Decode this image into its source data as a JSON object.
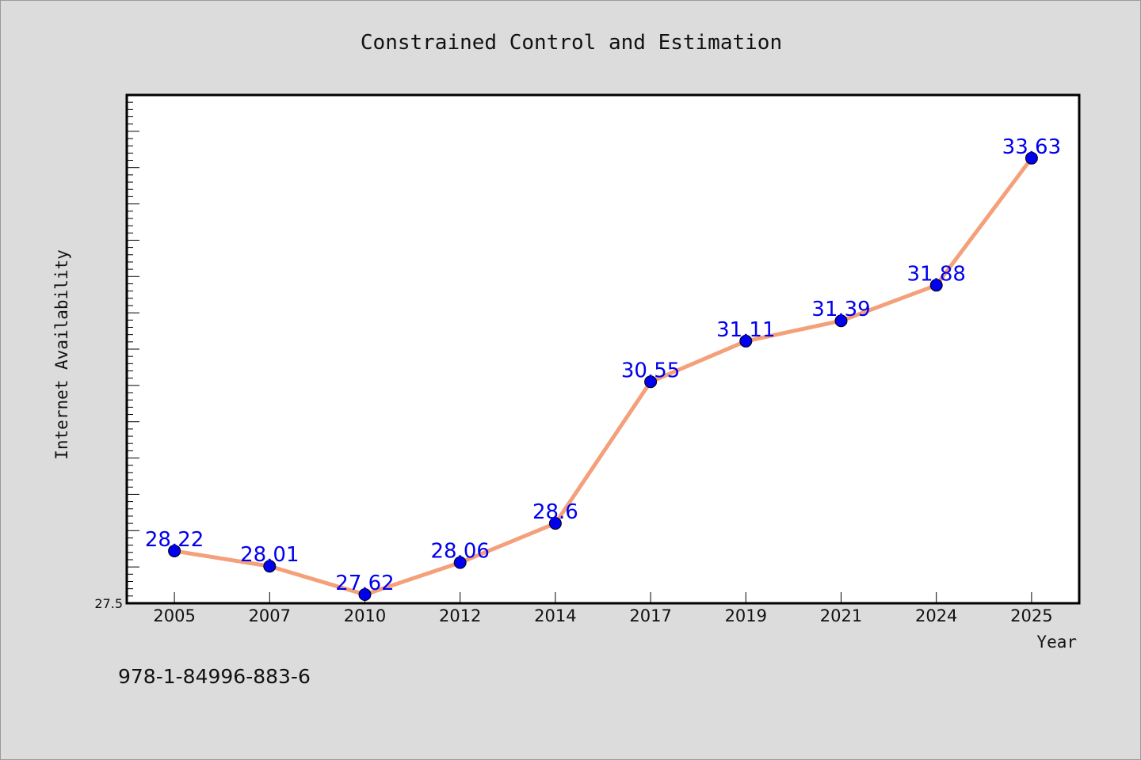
{
  "chart_data": {
    "type": "line",
    "title": "Constrained Control and Estimation",
    "xlabel": "Year",
    "ylabel": "Internet Availability",
    "categories": [
      "2005",
      "2007",
      "2010",
      "2012",
      "2014",
      "2017",
      "2019",
      "2021",
      "2024",
      "2025"
    ],
    "series": [
      {
        "values": [
          28.22,
          28.01,
          27.62,
          28.06,
          28.6,
          30.55,
          31.11,
          31.39,
          31.88,
          33.63
        ],
        "labels": [
          "28.22",
          "28.01",
          "27.62",
          "28.06",
          "28.6",
          "30.55",
          "31.11",
          "31.39",
          "31.88",
          "33.63"
        ],
        "line_color": "#f4a07a",
        "marker_color": "#0000ee",
        "label_color": "#0000ee"
      }
    ],
    "ylim": [
      27.5,
      34.5
    ],
    "y_tick_labels": [
      "27.5"
    ],
    "grid": false,
    "legend": "none"
  },
  "footer_text": "978-1-84996-883-6"
}
